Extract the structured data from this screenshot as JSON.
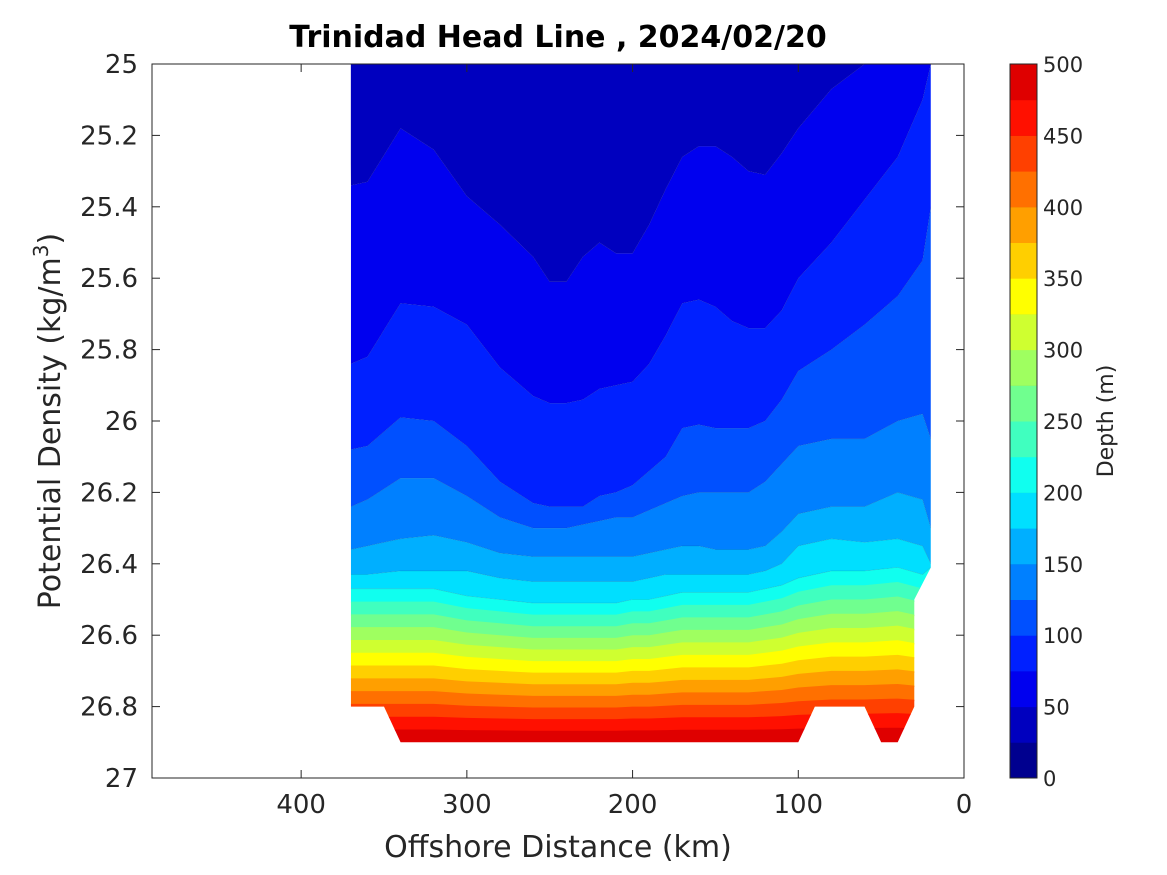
{
  "chart_data": {
    "type": "contour",
    "title": "Trinidad Head Line , 2024/02/20",
    "xlabel": "Offshore Distance (km)",
    "ylabel": "Potential Density (kg/m3)",
    "ylabel_main": "Potential Density (kg/m",
    "ylabel_sup": "3",
    "ylabel_close": ")",
    "colorbar_label": "Depth (m)",
    "xlim": [
      490,
      0
    ],
    "ylim": [
      25,
      27
    ],
    "x_ticks": [
      400,
      300,
      200,
      100,
      0
    ],
    "x_tick_labels": [
      "400",
      "300",
      "200",
      "100",
      "0"
    ],
    "y_ticks": [
      25,
      25.2,
      25.4,
      25.6,
      25.8,
      26,
      26.2,
      26.4,
      26.6,
      26.8,
      27
    ],
    "y_tick_labels": [
      "25",
      "25.2",
      "25.4",
      "25.6",
      "25.8",
      "26",
      "26.2",
      "26.4",
      "26.6",
      "26.8",
      "27"
    ],
    "colorbar_ticks": [
      0,
      50,
      100,
      150,
      200,
      250,
      300,
      350,
      400,
      450,
      500
    ],
    "colorbar_tick_labels": [
      "0",
      "50",
      "100",
      "150",
      "200",
      "250",
      "300",
      "350",
      "400",
      "450",
      "500"
    ],
    "clim": [
      0,
      500
    ],
    "levels_step": 25,
    "colormap": [
      "#00008f",
      "#0000bf",
      "#0000ef",
      "#0020ff",
      "#0050ff",
      "#0080ff",
      "#00afff",
      "#00dfff",
      "#10ffef",
      "#40ffbf",
      "#70ff8f",
      "#9fff60",
      "#cfff30",
      "#ffff00",
      "#ffcf00",
      "#ff9f00",
      "#ff7000",
      "#ff4000",
      "#ff1000",
      "#df0000",
      "#af0000"
    ],
    "data_region": {
      "x_min": 20,
      "x_max": 370,
      "bottom_edge": [
        [
          370,
          26.8
        ],
        [
          350,
          26.8
        ],
        [
          340,
          26.9
        ],
        [
          100,
          26.9
        ],
        [
          90,
          26.8
        ],
        [
          60,
          26.8
        ],
        [
          50,
          26.9
        ],
        [
          40,
          26.9
        ],
        [
          30,
          26.8
        ],
        [
          30,
          26.5
        ],
        [
          20,
          26.41
        ],
        [
          20,
          25.0
        ]
      ]
    },
    "isopycnals": [
      {
        "depth_m": 50,
        "x": [
          370,
          360,
          340,
          320,
          300,
          280,
          260,
          250,
          240,
          230,
          220,
          210,
          200,
          190,
          180,
          170,
          160,
          150,
          140,
          130,
          120,
          110,
          100,
          80,
          60,
          40,
          25,
          20
        ],
        "y": [
          25.34,
          25.33,
          25.18,
          25.24,
          25.37,
          25.45,
          25.54,
          25.61,
          25.61,
          25.54,
          25.5,
          25.53,
          25.53,
          25.45,
          25.35,
          25.26,
          25.23,
          25.23,
          25.26,
          25.3,
          25.31,
          25.25,
          25.18,
          25.07,
          25.0,
          25.0,
          25.0,
          25.0
        ]
      },
      {
        "depth_m": 75,
        "x": [
          370,
          360,
          340,
          320,
          300,
          280,
          260,
          250,
          240,
          230,
          220,
          210,
          200,
          190,
          180,
          170,
          160,
          150,
          140,
          130,
          120,
          110,
          100,
          80,
          60,
          40,
          25,
          20
        ],
        "y": [
          25.84,
          25.82,
          25.67,
          25.68,
          25.73,
          25.85,
          25.93,
          25.95,
          25.95,
          25.94,
          25.91,
          25.9,
          25.89,
          25.84,
          25.76,
          25.67,
          25.66,
          25.68,
          25.72,
          25.74,
          25.74,
          25.69,
          25.6,
          25.5,
          25.38,
          25.26,
          25.1,
          25.0
        ]
      },
      {
        "depth_m": 100,
        "x": [
          370,
          360,
          340,
          320,
          300,
          280,
          260,
          250,
          240,
          230,
          220,
          210,
          200,
          190,
          180,
          170,
          160,
          150,
          140,
          130,
          120,
          110,
          100,
          80,
          60,
          40,
          25,
          20
        ],
        "y": [
          26.08,
          26.07,
          25.99,
          26.0,
          26.07,
          26.17,
          26.23,
          26.24,
          26.24,
          26.24,
          26.21,
          26.2,
          26.18,
          26.14,
          26.1,
          26.02,
          26.01,
          26.02,
          26.02,
          26.02,
          26.0,
          25.94,
          25.86,
          25.8,
          25.73,
          25.65,
          25.55,
          25.4
        ]
      },
      {
        "depth_m": 125,
        "x": [
          370,
          360,
          340,
          320,
          300,
          280,
          260,
          250,
          240,
          230,
          220,
          210,
          200,
          190,
          180,
          170,
          160,
          150,
          140,
          130,
          120,
          110,
          100,
          80,
          60,
          40,
          25,
          20
        ],
        "y": [
          26.24,
          26.22,
          26.16,
          26.16,
          26.21,
          26.27,
          26.3,
          26.3,
          26.3,
          26.29,
          26.28,
          26.27,
          26.27,
          26.25,
          26.23,
          26.21,
          26.2,
          26.2,
          26.2,
          26.2,
          26.17,
          26.12,
          26.07,
          26.05,
          26.05,
          26.0,
          25.98,
          26.05
        ]
      },
      {
        "depth_m": 150,
        "x": [
          370,
          360,
          340,
          320,
          300,
          280,
          260,
          250,
          240,
          230,
          220,
          210,
          200,
          190,
          180,
          170,
          160,
          150,
          140,
          130,
          120,
          110,
          100,
          80,
          60,
          40,
          25,
          20
        ],
        "y": [
          26.36,
          26.35,
          26.33,
          26.32,
          26.34,
          26.37,
          26.38,
          26.38,
          26.38,
          26.38,
          26.38,
          26.38,
          26.38,
          26.37,
          26.36,
          26.35,
          26.35,
          26.36,
          26.36,
          26.36,
          26.35,
          26.31,
          26.26,
          26.24,
          26.24,
          26.2,
          26.22,
          26.3
        ]
      },
      {
        "depth_m": 175,
        "x": [
          370,
          360,
          340,
          320,
          300,
          280,
          260,
          250,
          240,
          230,
          220,
          210,
          200,
          190,
          180,
          170,
          160,
          150,
          140,
          130,
          120,
          110,
          100,
          80,
          60,
          40,
          25,
          20
        ],
        "y": [
          26.43,
          26.43,
          26.42,
          26.42,
          26.42,
          26.44,
          26.45,
          26.45,
          26.45,
          26.45,
          26.45,
          26.45,
          26.45,
          26.44,
          26.43,
          26.43,
          26.43,
          26.43,
          26.43,
          26.43,
          26.42,
          26.4,
          26.35,
          26.33,
          26.34,
          26.33,
          26.35,
          26.4
        ]
      },
      {
        "depth_m": 200,
        "x": [
          370,
          360,
          340,
          320,
          300,
          280,
          260,
          250,
          240,
          230,
          220,
          210,
          200,
          190,
          180,
          170,
          160,
          150,
          140,
          130,
          120,
          110,
          100,
          80,
          60,
          40,
          25,
          20
        ],
        "y": [
          26.47,
          26.47,
          26.47,
          26.47,
          26.49,
          26.5,
          26.51,
          26.51,
          26.51,
          26.51,
          26.51,
          26.51,
          26.5,
          26.5,
          26.49,
          26.48,
          26.48,
          26.48,
          26.48,
          26.48,
          26.47,
          26.46,
          26.44,
          26.42,
          26.42,
          26.41,
          26.43,
          26.41
        ]
      }
    ]
  }
}
